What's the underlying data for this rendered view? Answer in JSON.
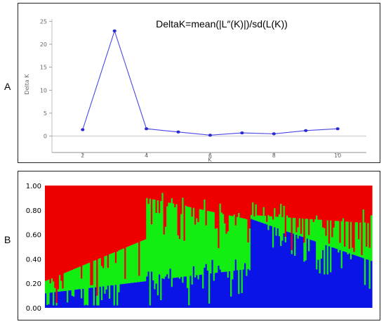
{
  "panels": {
    "a": {
      "letter": "A"
    },
    "b": {
      "letter": "B"
    }
  },
  "chart_data": [
    {
      "type": "line",
      "title": "DeltaK=mean(|L″(K)|)/sd(L(K))",
      "xlabel": "K",
      "ylabel": "Delta K",
      "x": [
        2,
        3,
        4,
        5,
        6,
        7,
        8,
        9,
        10
      ],
      "values": [
        1.4,
        22.9,
        1.6,
        0.9,
        0.2,
        0.7,
        0.5,
        1.2,
        1.6
      ],
      "xticks": [
        "2",
        "4",
        "6",
        "8",
        "10"
      ],
      "yticks": [
        "0",
        "5",
        "10",
        "15",
        "20",
        "25"
      ],
      "xlim": [
        1.3,
        10.9
      ],
      "ylim": [
        -2.5,
        25.5
      ],
      "colors": {
        "line": "#4848e8",
        "marker": "#2a2ad0",
        "axis": "#909090",
        "text": "#666666"
      }
    },
    {
      "type": "bar",
      "stacked": true,
      "title": "",
      "xlabel": "",
      "ylabel": "",
      "ylim": [
        0,
        1
      ],
      "yticks": [
        "1.00",
        "0.80",
        "0.60",
        "0.40",
        "0.20",
        "0.00"
      ],
      "num_individuals": 210,
      "breakpoint_fraction": 0.625,
      "series": [
        {
          "color": "#0a14e6"
        },
        {
          "color": "#12ee12"
        },
        {
          "color": "#ee0000"
        }
      ],
      "baseline": {
        "cluster1_left": [
          0.12,
          0.32
        ],
        "cluster1_right": [
          0.73,
          0.38
        ],
        "cluster12_left": [
          0.22,
          0.56
        ],
        "cluster12_middle": [
          0.9,
          0.72
        ],
        "cluster12_right": [
          0.76,
          0.69
        ],
        "middle_start_fraction": 0.305
      }
    }
  ]
}
